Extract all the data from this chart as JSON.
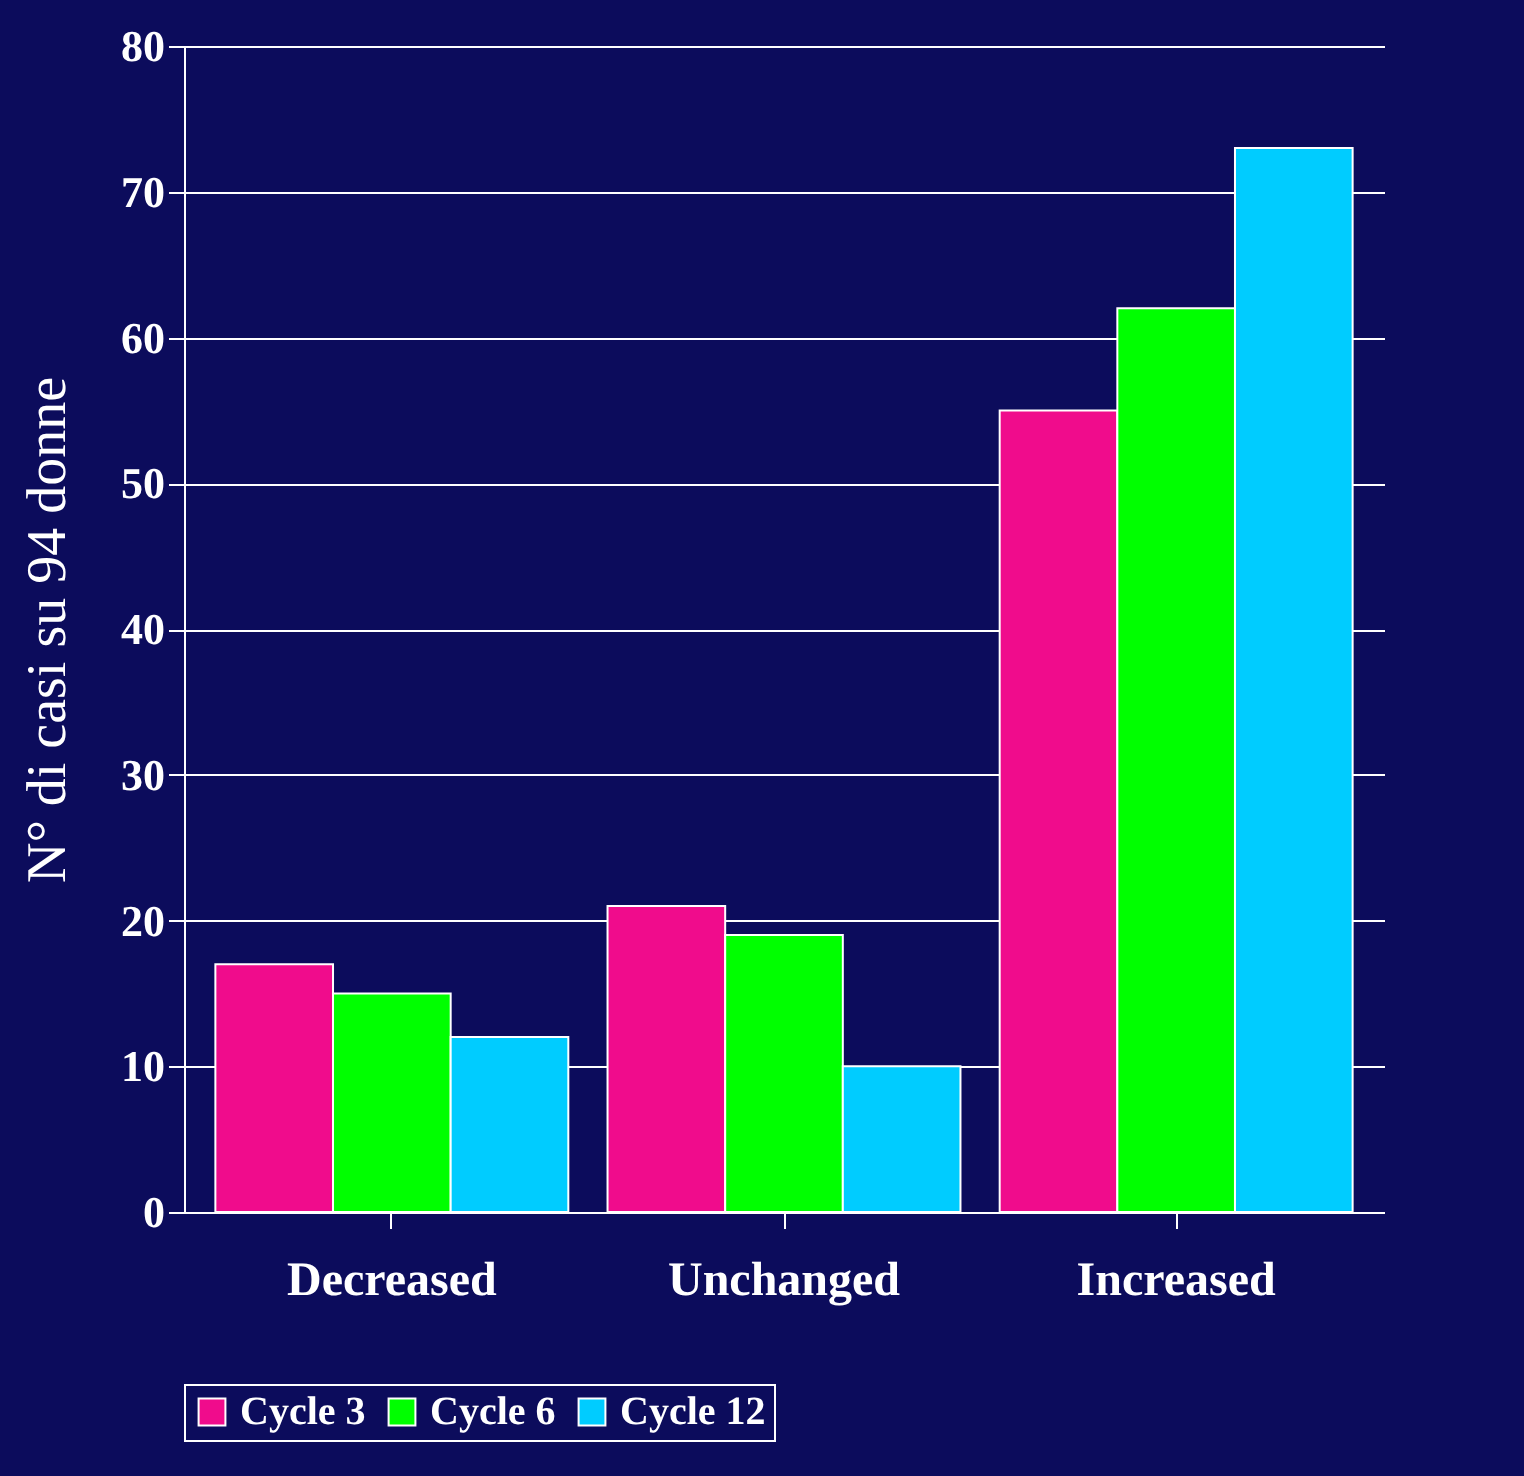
{
  "chart_data": {
    "type": "bar",
    "ylabel": "N° di casi su 94 donne",
    "categories": [
      "Decreased",
      "Unchanged",
      "Increased"
    ],
    "series": [
      {
        "name": "Cycle 3",
        "color": "#f00c8c",
        "values": [
          17,
          21,
          55
        ]
      },
      {
        "name": "Cycle 6",
        "color": "#00ff00",
        "values": [
          15,
          19,
          62
        ]
      },
      {
        "name": "Cycle 12",
        "color": "#00ccff",
        "values": [
          12,
          10,
          73
        ]
      }
    ],
    "ylim": [
      0,
      80
    ],
    "yticks": [
      0,
      10,
      20,
      30,
      40,
      50,
      60,
      70,
      80
    ],
    "grid": "y",
    "legend": "bottom"
  }
}
